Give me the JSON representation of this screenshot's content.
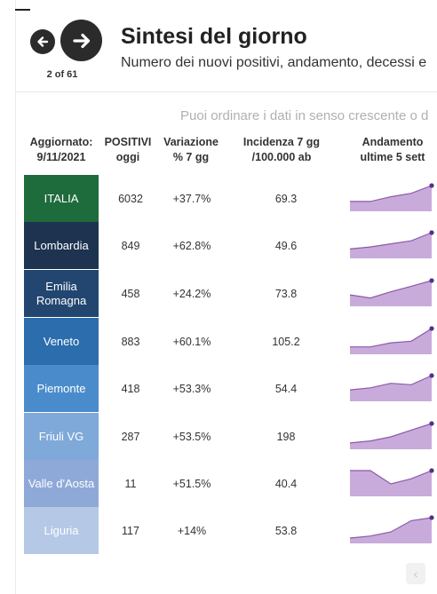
{
  "nav": {
    "page_counter": "2 of 61"
  },
  "header": {
    "title": "Sintesi del giorno",
    "subtitle": "Numero dei nuovi positivi, andamento, decessi e"
  },
  "hint": "Puoi ordinare i dati in senso crescente o d",
  "table": {
    "columns": {
      "updated": [
        "Aggiornato:",
        "9/11/2021"
      ],
      "positivi": [
        "POSITIVI",
        "oggi"
      ],
      "variazione": [
        "Variazione",
        "% 7 gg"
      ],
      "incidenza": [
        "Incidenza 7 gg",
        "/100.000 ab"
      ],
      "andamento": [
        "Andamento",
        "ultime 5 sett"
      ]
    },
    "rows": [
      {
        "region": [
          "ITALIA"
        ],
        "positivi": "6032",
        "variazione": "+37.7%",
        "incidenza": "69.3",
        "color": "#1e6b3b",
        "trend": [
          0.22,
          0.22,
          0.45,
          0.62,
          1.0
        ]
      },
      {
        "region": [
          "Lombardia"
        ],
        "positivi": "849",
        "variazione": "+62.8%",
        "incidenza": "49.6",
        "color": "#1d3350",
        "trend": [
          0.2,
          0.3,
          0.45,
          0.6,
          1.0
        ]
      },
      {
        "region": [
          "Emilia",
          "Romagna"
        ],
        "positivi": "458",
        "variazione": "+24.2%",
        "incidenza": "73.8",
        "color": "#22466f",
        "trend": [
          0.3,
          0.15,
          0.45,
          0.72,
          1.0
        ]
      },
      {
        "region": [
          "Veneto"
        ],
        "positivi": "883",
        "variazione": "+60.1%",
        "incidenza": "105.2",
        "color": "#2b6dad",
        "trend": [
          0.1,
          0.1,
          0.3,
          0.38,
          1.0
        ]
      },
      {
        "region": [
          "Piemonte"
        ],
        "positivi": "418",
        "variazione": "+53.3%",
        "incidenza": "54.4",
        "color": "#4a8ccb",
        "trend": [
          0.3,
          0.4,
          0.62,
          0.55,
          1.0
        ]
      },
      {
        "region": [
          "Friuli VG"
        ],
        "positivi": "287",
        "variazione": "+53.5%",
        "incidenza": "198",
        "color": "#7ea9d9",
        "trend": [
          0.05,
          0.15,
          0.35,
          0.68,
          1.0
        ]
      },
      {
        "region": [
          "Valle d'Aosta"
        ],
        "positivi": "11",
        "variazione": "+51.5%",
        "incidenza": "40.4",
        "color": "#8ea9d8",
        "trend": [
          1.0,
          1.0,
          0.35,
          0.6,
          1.0
        ]
      },
      {
        "region": [
          "Liguria"
        ],
        "positivi": "117",
        "variazione": "+14%",
        "incidenza": "53.8",
        "color": "#b5c8e6",
        "trend": [
          0.0,
          0.1,
          0.3,
          0.85,
          1.0
        ]
      }
    ]
  },
  "colors": {
    "spark_fill": "#c9abdb",
    "spark_line": "#8a5aa8",
    "spark_dot": "#5a2d8a"
  }
}
